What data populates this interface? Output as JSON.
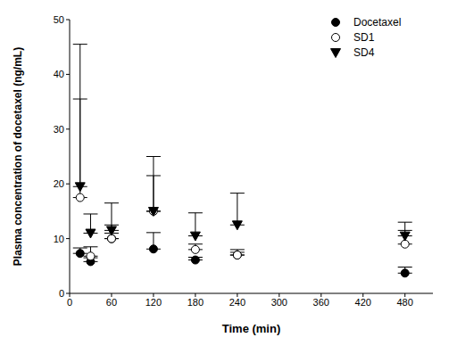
{
  "chart_data": {
    "type": "scatter",
    "x_label": "Time (min)",
    "y_label": "Plasma concentration of docetaxel (ng/mL)",
    "xlim": [
      0,
      520
    ],
    "xticks": [
      0,
      60,
      120,
      180,
      240,
      300,
      360,
      420,
      480
    ],
    "ylim": [
      0,
      50
    ],
    "yticks": [
      0,
      10,
      20,
      30,
      40,
      50
    ],
    "legend": "upper right",
    "series": [
      {
        "name": "Docetaxel",
        "color": "#000000",
        "marker": "filled_circle",
        "x": [
          15,
          30,
          60,
          120,
          180,
          240,
          480
        ],
        "values": [
          7.3,
          5.8,
          10,
          8.1,
          6.1,
          7,
          3.7
        ],
        "error": [
          1,
          0.7,
          1,
          3,
          0.5,
          0.5,
          1.1
        ]
      },
      {
        "name": "SD1",
        "color": "#000000",
        "marker": "open_circle",
        "x": [
          15,
          30,
          60,
          120,
          180,
          240,
          480
        ],
        "values": [
          17.5,
          6.8,
          10,
          15,
          8,
          7,
          9
        ],
        "error": [
          18,
          1.7,
          2.5,
          6.5,
          1,
          1,
          2.5
        ]
      },
      {
        "name": "SD4",
        "color": "#000000",
        "marker": "triangle_down",
        "x": [
          15,
          30,
          60,
          120,
          180,
          240,
          480
        ],
        "values": [
          19.5,
          11,
          11.5,
          15,
          10.5,
          12.5,
          10.5
        ],
        "error": [
          26,
          3.5,
          5,
          10,
          4.2,
          5.8,
          2.5
        ]
      }
    ]
  }
}
